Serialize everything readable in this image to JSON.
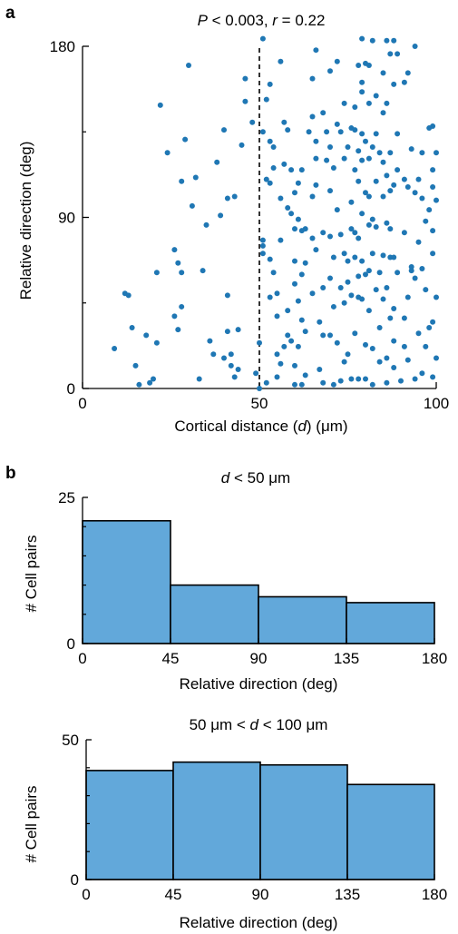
{
  "colors": {
    "points": "#1f77b4",
    "bars": "#62a8da",
    "axis": "#000000"
  },
  "panels": {
    "a": "a",
    "b": "b"
  },
  "chart_data": [
    {
      "type": "scatter",
      "title_parts": {
        "p_var": "P",
        "p_rest": " < 0.003, ",
        "r_var": "r",
        "r_rest": " = 0.22"
      },
      "xlabel_parts": {
        "pre": "Cortical distance (",
        "var": "d",
        "post": ") (μm)"
      },
      "ylabel": "Relative direction (deg)",
      "xlim": [
        0,
        100
      ],
      "ylim": [
        0,
        180
      ],
      "x_ticks": [
        "0",
        "50",
        "100"
      ],
      "y_ticks": [
        "0",
        "90",
        "180"
      ],
      "x_ticks_values": [
        0,
        50,
        100
      ],
      "y_ticks_values": [
        0,
        90,
        180
      ],
      "y_minor_ticks": [
        45,
        135
      ],
      "vline_x": 50,
      "points": [
        [
          9,
          21
        ],
        [
          12,
          50
        ],
        [
          13,
          49
        ],
        [
          14,
          32
        ],
        [
          15,
          12
        ],
        [
          16,
          2
        ],
        [
          18,
          28
        ],
        [
          19,
          3
        ],
        [
          20,
          5
        ],
        [
          21,
          24
        ],
        [
          21,
          61
        ],
        [
          22,
          149
        ],
        [
          24,
          124
        ],
        [
          26,
          38
        ],
        [
          26,
          73
        ],
        [
          27,
          66
        ],
        [
          27,
          31
        ],
        [
          28,
          43
        ],
        [
          28,
          109
        ],
        [
          28,
          61
        ],
        [
          29,
          131
        ],
        [
          30,
          170
        ],
        [
          31,
          96
        ],
        [
          32,
          111
        ],
        [
          33,
          5
        ],
        [
          34,
          62
        ],
        [
          35,
          86
        ],
        [
          36,
          25
        ],
        [
          37,
          18
        ],
        [
          38,
          119
        ],
        [
          39,
          91
        ],
        [
          40,
          16
        ],
        [
          40,
          136
        ],
        [
          41,
          100
        ],
        [
          41,
          30
        ],
        [
          41,
          49
        ],
        [
          42,
          18
        ],
        [
          42,
          12
        ],
        [
          43,
          6
        ],
        [
          43,
          101
        ],
        [
          44,
          10
        ],
        [
          44,
          31
        ],
        [
          45,
          128
        ],
        [
          46,
          151
        ],
        [
          46,
          163
        ],
        [
          48,
          140
        ],
        [
          49,
          8
        ],
        [
          50,
          0
        ],
        [
          50,
          24
        ],
        [
          51,
          135
        ],
        [
          51,
          184
        ],
        [
          51,
          78
        ],
        [
          51,
          75
        ],
        [
          51,
          71
        ],
        [
          52,
          152
        ],
        [
          52,
          110
        ],
        [
          52,
          3
        ],
        [
          53,
          160
        ],
        [
          53,
          130
        ],
        [
          53,
          108
        ],
        [
          53,
          68
        ],
        [
          53,
          48
        ],
        [
          54,
          127
        ],
        [
          54,
          116
        ],
        [
          54,
          61
        ],
        [
          55,
          50
        ],
        [
          55,
          38
        ],
        [
          55,
          18
        ],
        [
          55,
          6
        ],
        [
          56,
          172
        ],
        [
          56,
          100
        ],
        [
          56,
          78
        ],
        [
          56,
          13
        ],
        [
          57,
          140
        ],
        [
          57,
          118
        ],
        [
          57,
          22
        ],
        [
          58,
          136
        ],
        [
          58,
          95
        ],
        [
          58,
          41
        ],
        [
          58,
          28
        ],
        [
          59,
          115
        ],
        [
          59,
          92
        ],
        [
          59,
          25
        ],
        [
          60,
          103
        ],
        [
          60,
          84
        ],
        [
          60,
          67
        ],
        [
          60,
          55
        ],
        [
          60,
          12
        ],
        [
          60,
          2
        ],
        [
          61,
          108
        ],
        [
          61,
          89
        ],
        [
          61,
          46
        ],
        [
          61,
          22
        ],
        [
          62,
          115
        ],
        [
          62,
          83
        ],
        [
          62,
          60
        ],
        [
          62,
          36
        ],
        [
          62,
          2
        ],
        [
          63,
          84
        ],
        [
          63,
          66
        ],
        [
          63,
          30
        ],
        [
          63,
          7
        ],
        [
          64,
          135
        ],
        [
          65,
          163
        ],
        [
          65,
          143
        ],
        [
          65,
          101
        ],
        [
          65,
          79
        ],
        [
          65,
          50
        ],
        [
          66,
          178
        ],
        [
          66,
          130
        ],
        [
          66,
          121
        ],
        [
          66,
          107
        ],
        [
          66,
          73
        ],
        [
          67,
          35
        ],
        [
          67,
          10
        ],
        [
          68,
          145
        ],
        [
          68,
          82
        ],
        [
          68,
          53
        ],
        [
          68,
          28
        ],
        [
          68,
          3
        ],
        [
          69,
          135
        ],
        [
          69,
          120
        ],
        [
          70,
          167
        ],
        [
          70,
          127
        ],
        [
          70,
          104
        ],
        [
          70,
          80
        ],
        [
          70,
          58
        ],
        [
          70,
          28
        ],
        [
          71,
          116
        ],
        [
          71,
          69
        ],
        [
          71,
          43
        ],
        [
          71,
          2
        ],
        [
          72,
          172
        ],
        [
          72,
          139
        ],
        [
          72,
          94
        ],
        [
          72,
          24
        ],
        [
          73,
          135
        ],
        [
          73,
          81
        ],
        [
          73,
          53
        ],
        [
          73,
          4
        ],
        [
          74,
          150
        ],
        [
          74,
          121
        ],
        [
          74,
          71
        ],
        [
          74,
          45
        ],
        [
          74,
          14
        ],
        [
          75,
          127
        ],
        [
          75,
          67
        ],
        [
          75,
          56
        ],
        [
          75,
          18
        ],
        [
          76,
          137
        ],
        [
          76,
          98
        ],
        [
          76,
          84
        ],
        [
          76,
          49
        ],
        [
          76,
          5
        ],
        [
          77,
          148
        ],
        [
          77,
          136
        ],
        [
          77,
          115
        ],
        [
          77,
          82
        ],
        [
          77,
          69
        ],
        [
          77,
          29
        ],
        [
          78,
          170
        ],
        [
          78,
          125
        ],
        [
          78,
          109
        ],
        [
          78,
          79
        ],
        [
          78,
          59
        ],
        [
          78,
          48
        ],
        [
          78,
          5
        ],
        [
          79,
          184
        ],
        [
          79,
          161
        ],
        [
          79,
          156
        ],
        [
          79,
          134
        ],
        [
          79,
          120
        ],
        [
          79,
          92
        ],
        [
          79,
          67
        ],
        [
          79,
          47
        ],
        [
          80,
          171
        ],
        [
          80,
          130
        ],
        [
          80,
          103
        ],
        [
          80,
          60
        ],
        [
          80,
          23
        ],
        [
          80,
          5
        ],
        [
          81,
          170
        ],
        [
          81,
          150
        ],
        [
          81,
          121
        ],
        [
          81,
          101
        ],
        [
          81,
          86
        ],
        [
          81,
          62
        ],
        [
          81,
          41
        ],
        [
          82,
          183
        ],
        [
          82,
          127
        ],
        [
          82,
          89
        ],
        [
          82,
          71
        ],
        [
          82,
          21
        ],
        [
          82,
          2
        ],
        [
          83,
          154
        ],
        [
          83,
          134
        ],
        [
          83,
          109
        ],
        [
          83,
          85
        ],
        [
          83,
          52
        ],
        [
          84,
          124
        ],
        [
          84,
          61
        ],
        [
          84,
          32
        ],
        [
          84,
          14
        ],
        [
          85,
          166
        ],
        [
          85,
          145
        ],
        [
          85,
          119
        ],
        [
          85,
          101
        ],
        [
          85,
          70
        ],
        [
          85,
          47
        ],
        [
          86,
          183
        ],
        [
          86,
          150
        ],
        [
          86,
          112
        ],
        [
          86,
          87
        ],
        [
          86,
          53
        ],
        [
          86,
          16
        ],
        [
          86,
          3
        ],
        [
          87,
          176
        ],
        [
          87,
          124
        ],
        [
          87,
          104
        ],
        [
          87,
          84
        ],
        [
          87,
          69
        ],
        [
          87,
          37
        ],
        [
          88,
          183
        ],
        [
          88,
          160
        ],
        [
          88,
          107
        ],
        [
          88,
          69
        ],
        [
          88,
          42
        ],
        [
          88,
          25
        ],
        [
          88,
          11
        ],
        [
          89,
          176
        ],
        [
          89,
          134
        ],
        [
          89,
          115
        ],
        [
          89,
          61
        ],
        [
          90,
          4
        ],
        [
          91,
          161
        ],
        [
          91,
          110
        ],
        [
          91,
          82
        ],
        [
          91,
          37
        ],
        [
          91,
          22
        ],
        [
          92,
          166
        ],
        [
          92,
          106
        ],
        [
          92,
          48
        ],
        [
          92,
          15
        ],
        [
          93,
          126
        ],
        [
          93,
          64
        ],
        [
          93,
          62
        ],
        [
          94,
          180
        ],
        [
          94,
          103
        ],
        [
          94,
          58
        ],
        [
          94,
          5
        ],
        [
          95,
          110
        ],
        [
          95,
          77
        ],
        [
          95,
          29
        ],
        [
          96,
          124
        ],
        [
          96,
          100
        ],
        [
          96,
          63
        ],
        [
          96,
          8
        ],
        [
          97,
          88
        ],
        [
          97,
          52
        ],
        [
          97,
          22
        ],
        [
          98,
          137
        ],
        [
          98,
          94
        ],
        [
          98,
          32
        ],
        [
          99,
          138
        ],
        [
          99,
          115
        ],
        [
          99,
          106
        ],
        [
          99,
          83
        ],
        [
          99,
          71
        ],
        [
          99,
          35
        ],
        [
          99,
          6
        ],
        [
          100,
          48
        ],
        [
          100,
          99
        ],
        [
          100,
          16
        ],
        [
          100,
          124
        ]
      ]
    },
    {
      "type": "bar",
      "title_parts": {
        "var": "d",
        "rest": " < 50 μm"
      },
      "xlabel": "Relative direction (deg)",
      "ylabel": "# Cell pairs",
      "bin_edges": [
        0,
        45,
        90,
        135,
        180
      ],
      "x_ticks": [
        "0",
        "45",
        "90",
        "135",
        "180"
      ],
      "x_ticks_values": [
        0,
        45,
        90,
        135,
        180
      ],
      "y_ticks": [
        "0",
        "25"
      ],
      "y_ticks_values": [
        0,
        25
      ],
      "y_minor_ticks": [
        5,
        10,
        15,
        20
      ],
      "ylim": [
        0,
        25
      ],
      "values": [
        21,
        10,
        8,
        7
      ]
    },
    {
      "type": "bar",
      "title_parts": {
        "pre": "50 μm < ",
        "var": "d",
        "rest": " < 100 μm"
      },
      "xlabel": "Relative direction (deg)",
      "ylabel": "# Cell pairs",
      "bin_edges": [
        0,
        45,
        90,
        135,
        180
      ],
      "x_ticks": [
        "0",
        "45",
        "90",
        "135",
        "180"
      ],
      "x_ticks_values": [
        0,
        45,
        90,
        135,
        180
      ],
      "y_ticks": [
        "0",
        "50"
      ],
      "y_ticks_values": [
        0,
        50
      ],
      "y_minor_ticks": [
        10,
        20,
        30,
        40
      ],
      "ylim": [
        0,
        50
      ],
      "values": [
        39,
        42,
        41,
        34
      ]
    }
  ]
}
